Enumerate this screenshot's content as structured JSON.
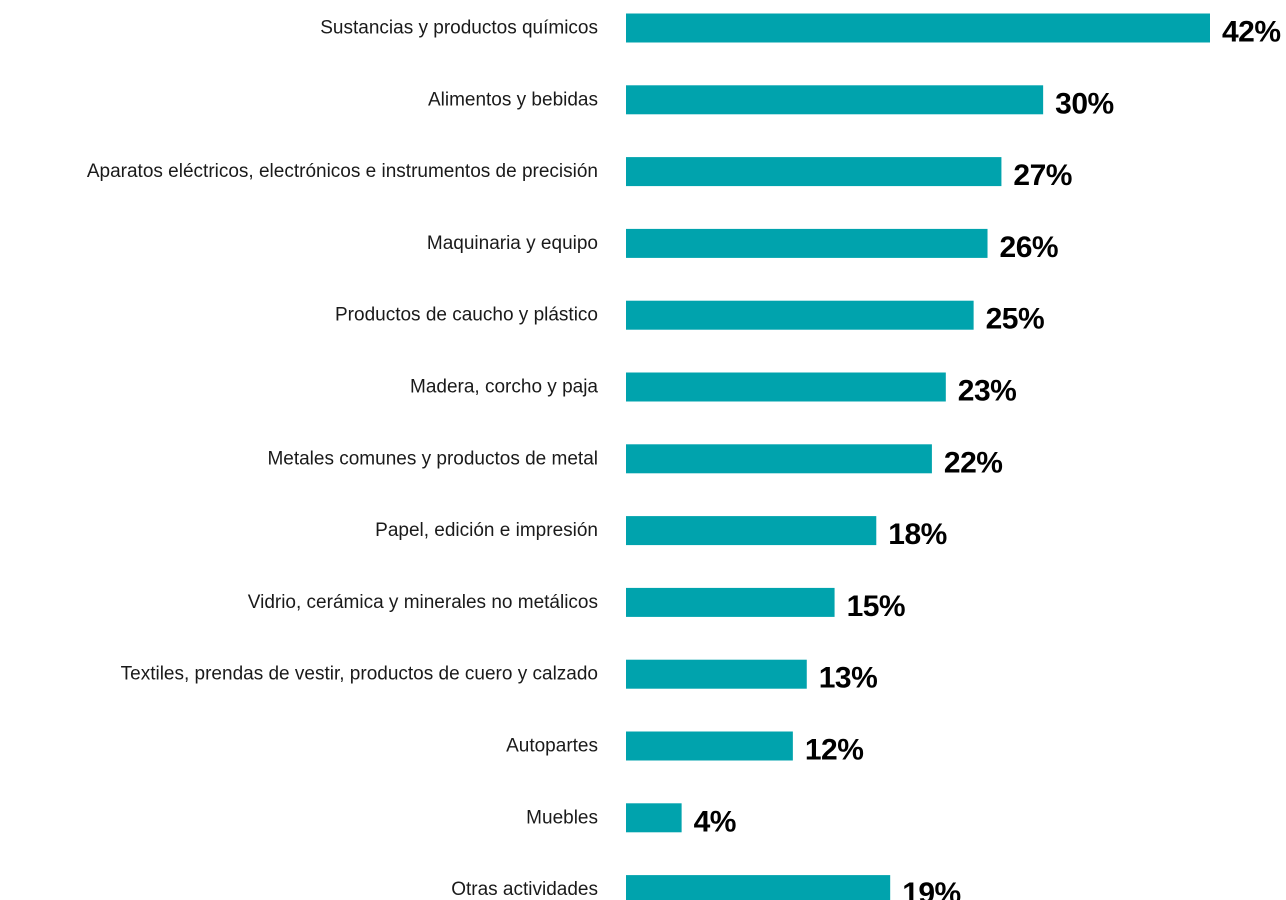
{
  "chart_data": {
    "type": "bar",
    "orientation": "horizontal",
    "categories": [
      "Sustancias y productos químicos",
      "Alimentos y bebidas",
      "Aparatos eléctricos, electrónicos e instrumentos de precisión",
      "Maquinaria y equipo",
      "Productos de caucho y plástico",
      "Madera, corcho y paja",
      "Metales comunes y productos de metal",
      "Papel, edición e impresión",
      "Vidrio, cerámica y minerales no metálicos",
      "Textiles, prendas de vestir, productos de cuero y calzado",
      "Autopartes",
      "Muebles",
      "Otras actividades"
    ],
    "values": [
      42,
      30,
      27,
      26,
      25,
      23,
      22,
      18,
      15,
      13,
      12,
      4,
      19
    ],
    "value_labels": [
      "42%",
      "30%",
      "27%",
      "26%",
      "25%",
      "23%",
      "22%",
      "18%",
      "15%",
      "13%",
      "12%",
      "4%",
      "19%"
    ],
    "unit": "%",
    "bar_color": "#00a3ad",
    "title": "",
    "xlabel": "",
    "ylabel": "",
    "grid": false,
    "legend": "none"
  }
}
